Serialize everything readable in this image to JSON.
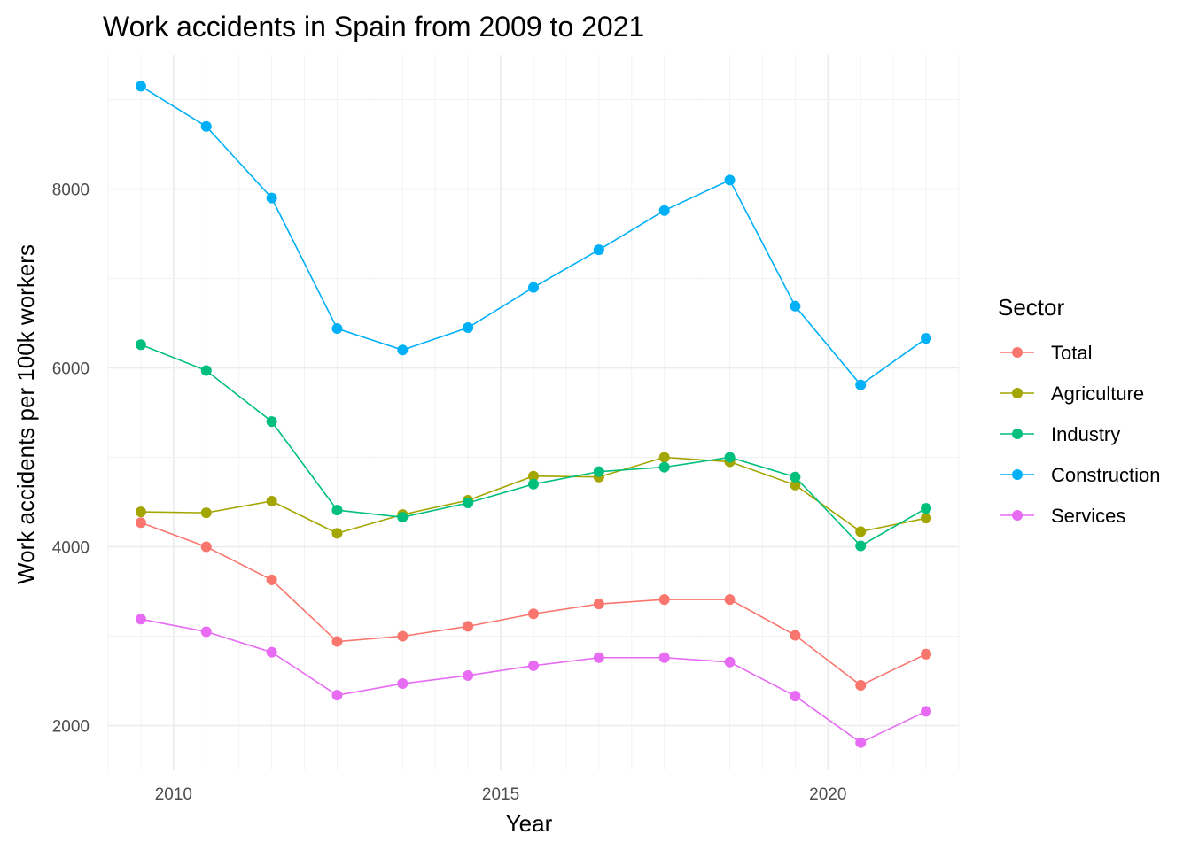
{
  "chart_data": {
    "type": "line",
    "title": "Work accidents in Spain from 2009 to 2021",
    "xlabel": "Year",
    "ylabel": "Work accidents per 100k workers",
    "xlim": [
      2009,
      2022
    ],
    "ylim": [
      1500,
      9500
    ],
    "x_ticks": [
      2010,
      2015,
      2020
    ],
    "y_ticks": [
      2000,
      4000,
      6000,
      8000
    ],
    "grid": true,
    "legend": {
      "title": "Sector",
      "position": "right"
    },
    "x": [
      2009.5,
      2010.5,
      2011.5,
      2012.5,
      2013.5,
      2014.5,
      2015.5,
      2016.5,
      2017.5,
      2018.5,
      2019.5,
      2020.5,
      2021.5
    ],
    "series": [
      {
        "name": "Total",
        "color": "#F8766D",
        "values": [
          4270,
          4000,
          3630,
          2940,
          3000,
          3110,
          3250,
          3360,
          3410,
          3410,
          3010,
          2450,
          2800
        ]
      },
      {
        "name": "Agriculture",
        "color": "#A3A500",
        "values": [
          4390,
          4380,
          4510,
          4150,
          4360,
          4520,
          4790,
          4780,
          5000,
          4950,
          4690,
          4170,
          4320
        ]
      },
      {
        "name": "Industry",
        "color": "#00BF7D",
        "values": [
          6260,
          5970,
          5400,
          4410,
          4330,
          4490,
          4700,
          4840,
          4890,
          5000,
          4780,
          4010,
          4430
        ]
      },
      {
        "name": "Construction",
        "color": "#00B0F6",
        "values": [
          9150,
          8700,
          7900,
          6440,
          6200,
          6450,
          6900,
          7320,
          7760,
          8100,
          6690,
          5810,
          6330
        ]
      },
      {
        "name": "Services",
        "color": "#E76BF3",
        "values": [
          3190,
          3050,
          2820,
          2340,
          2470,
          2560,
          2670,
          2760,
          2760,
          2710,
          2330,
          1810,
          2160
        ]
      }
    ]
  }
}
